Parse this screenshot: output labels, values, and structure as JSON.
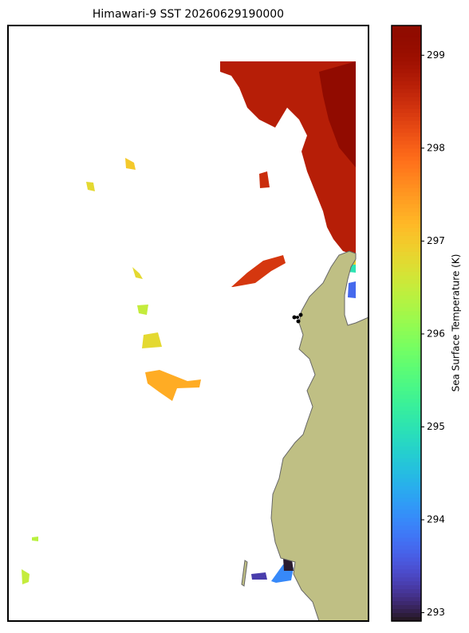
{
  "title": "Himawari-9 SST 20260629190000",
  "colorbar": {
    "label": "Sea Surface Temperature (K)",
    "lim": [
      292.91,
      299.32
    ],
    "ticks": [
      293,
      294,
      295,
      296,
      297,
      298,
      299
    ]
  },
  "sst_regions": [
    298.7,
    299.2,
    298.4,
    298.5,
    297.3,
    297.0,
    296.8,
    296.8,
    296.5,
    296.8,
    296.5,
    296.4,
    293.3,
    294.0,
    292.95,
    296.9,
    295.0,
    293.7
  ]
}
